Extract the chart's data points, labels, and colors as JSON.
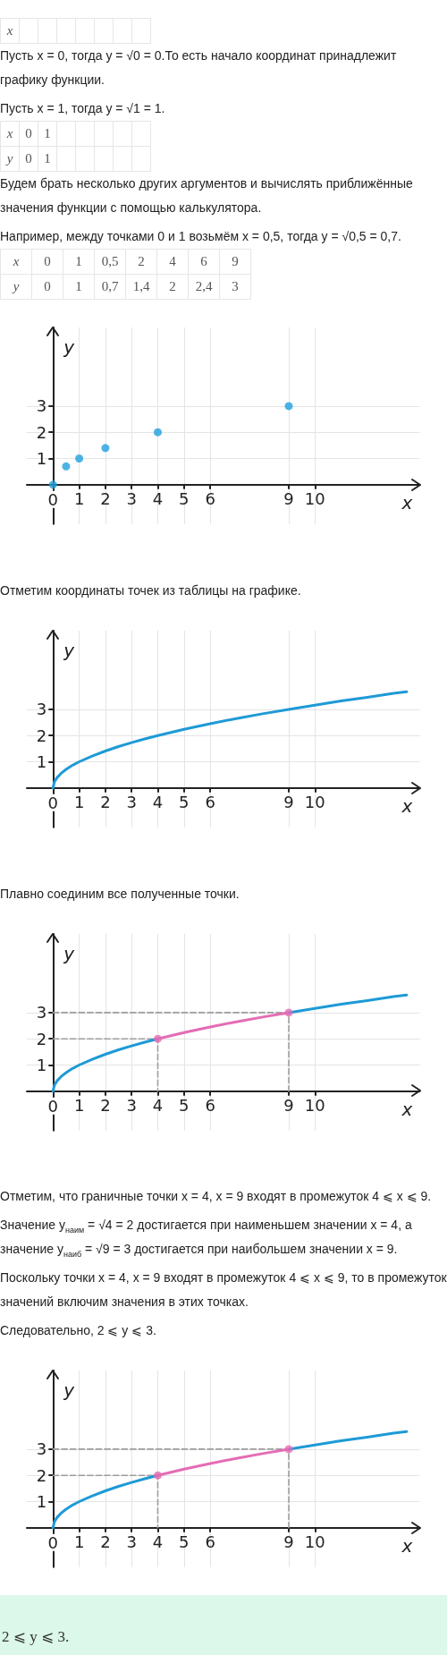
{
  "chart_data": [
    {
      "type": "other",
      "xlabel": "x"
    },
    {
      "type": "other",
      "annotations": [
        "Пусть x = 0, тогда y = √0 = 0.То есть начало координат принадлежит графику функции.",
        "Пусть x = 1, тогда y = √1 = 1."
      ]
    },
    {
      "type": "other",
      "xlabel": "x",
      "ylabel": "y",
      "annotations": [
        "0",
        "1",
        "0",
        "1"
      ]
    },
    {
      "type": "other",
      "annotations": [
        "Будем брать несколько других аргументов и вычислять приближённые значения функции с помощью калькулятора.",
        "Например, между точками 0 и 1 возьмём x = 0,5, тогда y = √0,5 = 0,7."
      ]
    },
    {
      "type": "other",
      "xlabel": "x",
      "ylabel": "y",
      "annotations": [
        "0",
        "1",
        "0,5",
        "2",
        "4",
        "6",
        "9",
        "0",
        "1",
        "0,7",
        "1,4",
        "2",
        "2,4",
        "3"
      ]
    },
    {
      "type": "scatter",
      "x": [
        0,
        0.5,
        1,
        2,
        4,
        9
      ],
      "values": [
        0,
        0.7,
        1,
        1.4,
        2,
        3
      ],
      "color": "#1ea0de",
      "marker": "circle",
      "xlabel": "x",
      "ylabel": "y",
      "xlim": [
        -1,
        14
      ],
      "ylim": [
        -1.5,
        6
      ],
      "xticks": [
        0,
        1,
        2,
        3,
        4,
        5,
        6,
        9,
        10
      ],
      "yticks": [
        1,
        2,
        3
      ],
      "grid": true
    },
    {
      "type": "other",
      "annotations": [
        "Отметим координаты точек из таблицы на графике."
      ]
    },
    {
      "type": "line",
      "series": [
        {
          "color": "#1e9ad6",
          "x": [
            0,
            0.05,
            0.15,
            0.3,
            0.5,
            0.75,
            1,
            1.5,
            2,
            2.5,
            3,
            3.5,
            4,
            5,
            6,
            7,
            8,
            9,
            10,
            11,
            12,
            13,
            13.5
          ],
          "values": [
            0,
            0.22,
            0.39,
            0.55,
            0.71,
            0.87,
            1,
            1.22,
            1.41,
            1.58,
            1.73,
            1.87,
            2,
            2.24,
            2.45,
            2.65,
            2.83,
            3,
            3.16,
            3.32,
            3.46,
            3.61,
            3.67
          ]
        }
      ],
      "xlabel": "x",
      "ylabel": "y",
      "xlim": [
        -1,
        14
      ],
      "ylim": [
        -1.5,
        6
      ],
      "xticks": [
        0,
        1,
        2,
        3,
        4,
        5,
        6,
        9,
        10
      ],
      "yticks": [
        1,
        2,
        3
      ],
      "grid": true
    },
    {
      "type": "other",
      "annotations": [
        "Плавно соединим все полученные точки."
      ]
    },
    {
      "type": "line",
      "series": [
        {
          "color": "#1e9ad6",
          "x": [
            0,
            0.05,
            0.15,
            0.3,
            0.5,
            0.75,
            1,
            1.5,
            2,
            2.5,
            3,
            3.5,
            4
          ],
          "values": [
            0,
            0.22,
            0.39,
            0.55,
            0.71,
            0.87,
            1,
            1.22,
            1.41,
            1.58,
            1.73,
            1.87,
            2
          ]
        },
        {
          "color": "#e46cb4",
          "x": [
            4,
            5,
            6,
            7,
            8,
            9
          ],
          "values": [
            2,
            2.24,
            2.45,
            2.65,
            2.83,
            3
          ]
        },
        {
          "color": "#1e9ad6",
          "x": [
            9,
            10,
            11,
            12,
            13,
            13.5
          ],
          "values": [
            3,
            3.16,
            3.32,
            3.46,
            3.61,
            3.67
          ]
        },
        {
          "type": "scatter",
          "color": "#e46cb4",
          "marker": "circle",
          "x": [
            4,
            9
          ],
          "values": [
            2,
            3
          ]
        },
        {
          "color": "#9e9e9e",
          "line_style": "dashed",
          "x": [
            0,
            4,
            4
          ],
          "values": [
            2,
            2,
            0
          ]
        },
        {
          "color": "#9e9e9e",
          "line_style": "dashed",
          "x": [
            0,
            9,
            9
          ],
          "values": [
            3,
            3,
            0
          ]
        }
      ],
      "xlabel": "x",
      "ylabel": "y",
      "xlim": [
        -1,
        14
      ],
      "ylim": [
        -1.5,
        6
      ],
      "xticks": [
        0,
        1,
        2,
        3,
        4,
        5,
        6,
        9,
        10
      ],
      "yticks": [
        1,
        2,
        3
      ],
      "grid": true
    },
    {
      "type": "other",
      "annotations": [
        "Отметим, что граничные точки x = 4, x = 9 входят в промежуток 4 ⩽ x ⩽ 9.",
        "Значение y$_{наим}$ = √4 = 2 достигается при наименьшем значении x = 4, а значение y$_{наиб}$ = √9 = 3 достигается при наибольшем значении x = 9.",
        "Поскольку точки x = 4, x = 9 входят в промежуток 4 ⩽ x ⩽ 9, то в промежуток значений включим значения в этих точках.",
        "Следовательно, 2 ⩽ y ⩽ 3."
      ]
    },
    {
      "type": "line",
      "series": [
        {
          "color": "#1e9ad6",
          "x": [
            0,
            0.05,
            0.15,
            0.3,
            0.5,
            0.75,
            1,
            1.5,
            2,
            2.5,
            3,
            3.5,
            4
          ],
          "values": [
            0,
            0.22,
            0.39,
            0.55,
            0.71,
            0.87,
            1,
            1.22,
            1.41,
            1.58,
            1.73,
            1.87,
            2
          ]
        },
        {
          "color": "#e46cb4",
          "x": [
            4,
            5,
            6,
            7,
            8,
            9
          ],
          "values": [
            2,
            2.24,
            2.45,
            2.65,
            2.83,
            3
          ]
        },
        {
          "color": "#1e9ad6",
          "x": [
            9,
            10,
            11,
            12,
            13,
            13.5
          ],
          "values": [
            3,
            3.16,
            3.32,
            3.46,
            3.61,
            3.67
          ]
        },
        {
          "type": "scatter",
          "color": "#e46cb4",
          "marker": "circle",
          "x": [
            4,
            9
          ],
          "values": [
            2,
            3
          ]
        },
        {
          "color": "#9e9e9e",
          "line_style": "dashed",
          "x": [
            0,
            4,
            4
          ],
          "values": [
            2,
            2,
            0
          ]
        },
        {
          "color": "#9e9e9e",
          "line_style": "dashed",
          "x": [
            0,
            9,
            9
          ],
          "values": [
            3,
            3,
            0
          ]
        }
      ],
      "xlabel": "x",
      "ylabel": "y",
      "xlim": [
        -1,
        14
      ],
      "ylim": [
        -1.5,
        6
      ],
      "xticks": [
        0,
        1,
        2,
        3,
        4,
        5,
        6,
        9,
        10
      ],
      "yticks": [
        1,
        2,
        3
      ],
      "grid": true
    },
    {
      "type": "other",
      "annotations": [
        "2 ⩽ y ⩽ 3."
      ]
    }
  ]
}
